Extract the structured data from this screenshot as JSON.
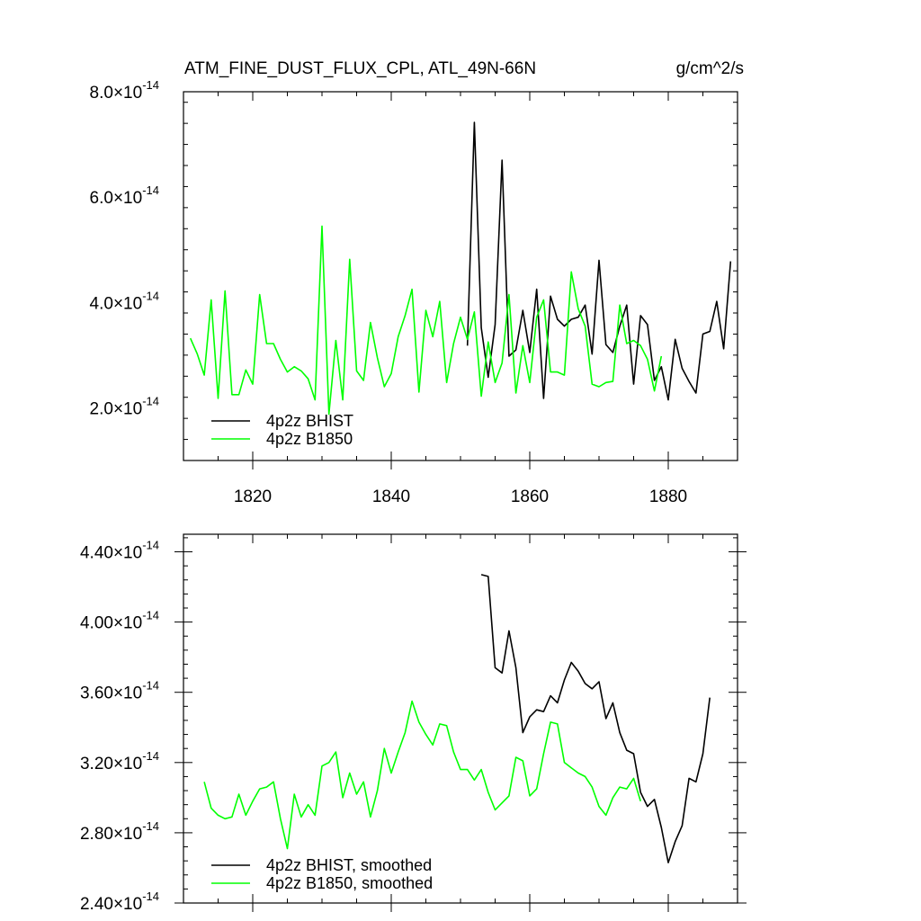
{
  "chart_data": [
    {
      "type": "line",
      "title": "ATM_FINE_DUST_FLUX_CPL, ATL_49N-66N",
      "units": "g/cm^2/s",
      "xlim": [
        1810,
        1890
      ],
      "ylim": [
        1e-14,
        8e-14
      ],
      "x_ticks": [
        1820,
        1840,
        1860,
        1880
      ],
      "x_tick_labels": [
        "1820",
        "1840",
        "1860",
        "1880"
      ],
      "y_ticks": [
        2e-14,
        4e-14,
        6e-14,
        8e-14
      ],
      "y_tick_labels": [
        {
          "mant": "2.0",
          "exp": "-14"
        },
        {
          "mant": "4.0",
          "exp": "-14"
        },
        {
          "mant": "6.0",
          "exp": "-14"
        },
        {
          "mant": "8.0",
          "exp": "-14"
        }
      ],
      "legend_position": "bottom-left",
      "series": [
        {
          "name": "4p2z BHIST",
          "color": "#000000",
          "x": [
            1851,
            1852,
            1853,
            1854,
            1855,
            1856,
            1857,
            1858,
            1859,
            1860,
            1861,
            1862,
            1863,
            1864,
            1865,
            1866,
            1867,
            1868,
            1869,
            1870,
            1871,
            1872,
            1873,
            1874,
            1875,
            1876,
            1877,
            1878,
            1879,
            1880,
            1881,
            1882,
            1883,
            1884,
            1885,
            1886,
            1887,
            1888,
            1889
          ],
          "y": [
            3.18e-14,
            7.42e-14,
            3.52e-14,
            2.58e-14,
            3.58e-14,
            6.7e-14,
            2.98e-14,
            3.1e-14,
            3.85e-14,
            3.05e-14,
            4.25e-14,
            2.18e-14,
            4.12e-14,
            3.68e-14,
            3.55e-14,
            3.68e-14,
            3.72e-14,
            3.95e-14,
            3.02e-14,
            4.8e-14,
            3.2e-14,
            3.05e-14,
            3.55e-14,
            3.95e-14,
            2.45e-14,
            3.75e-14,
            3.58e-14,
            2.52e-14,
            2.78e-14,
            2.15e-14,
            3.3e-14,
            2.75e-14,
            2.5e-14,
            2.28e-14,
            3.4e-14,
            3.45e-14,
            4.02e-14,
            3.12e-14,
            4.78e-14
          ]
        },
        {
          "name": "4p2z B1850",
          "color": "#00ff00",
          "x": [
            1811,
            1812,
            1813,
            1814,
            1815,
            1816,
            1817,
            1818,
            1819,
            1820,
            1821,
            1822,
            1823,
            1824,
            1825,
            1826,
            1827,
            1828,
            1829,
            1830,
            1831,
            1832,
            1833,
            1834,
            1835,
            1836,
            1837,
            1838,
            1839,
            1840,
            1841,
            1842,
            1843,
            1844,
            1845,
            1846,
            1847,
            1848,
            1849,
            1850,
            1851,
            1852,
            1853,
            1854,
            1855,
            1856,
            1857,
            1858,
            1859,
            1860,
            1861,
            1862,
            1863,
            1864,
            1865,
            1866,
            1867,
            1868,
            1869,
            1870,
            1871,
            1872,
            1873,
            1874,
            1875,
            1876,
            1877,
            1878,
            1879
          ],
          "y": [
            3.32e-14,
            3.02e-14,
            2.62e-14,
            4.05e-14,
            2.18e-14,
            4.22e-14,
            2.25e-14,
            2.25e-14,
            2.72e-14,
            2.45e-14,
            4.15e-14,
            3.22e-14,
            3.22e-14,
            2.92e-14,
            2.68e-14,
            2.78e-14,
            2.7e-14,
            2.55e-14,
            2.15e-14,
            5.45e-14,
            1.88e-14,
            3.28e-14,
            2.15e-14,
            4.82e-14,
            2.7e-14,
            2.52e-14,
            3.62e-14,
            2.95e-14,
            2.4e-14,
            2.65e-14,
            3.35e-14,
            3.75e-14,
            4.25e-14,
            2.3e-14,
            3.85e-14,
            3.35e-14,
            4.02e-14,
            2.48e-14,
            3.22e-14,
            3.72e-14,
            3.3e-14,
            3.82e-14,
            2.22e-14,
            3.25e-14,
            2.48e-14,
            2.85e-14,
            4.15e-14,
            2.28e-14,
            3.18e-14,
            2.48e-14,
            3.72e-14,
            4.05e-14,
            2.68e-14,
            2.68e-14,
            2.62e-14,
            4.58e-14,
            3.88e-14,
            3.55e-14,
            2.45e-14,
            2.4e-14,
            2.48e-14,
            2.5e-14,
            3.95e-14,
            3.22e-14,
            3.28e-14,
            3.18e-14,
            2.92e-14,
            2.32e-14,
            2.98e-14
          ]
        }
      ]
    },
    {
      "type": "line",
      "xlim": [
        1810,
        1890
      ],
      "ylim": [
        2.4e-14,
        4.5e-14
      ],
      "x_ticks": [
        1820,
        1840,
        1860,
        1880
      ],
      "y_ticks": [
        2.4e-14,
        2.8e-14,
        3.2e-14,
        3.6e-14,
        4e-14,
        4.4e-14
      ],
      "y_tick_labels": [
        {
          "mant": "2.40",
          "exp": "-14"
        },
        {
          "mant": "2.80",
          "exp": "-14"
        },
        {
          "mant": "3.20",
          "exp": "-14"
        },
        {
          "mant": "3.60",
          "exp": "-14"
        },
        {
          "mant": "4.00",
          "exp": "-14"
        },
        {
          "mant": "4.40",
          "exp": "-14"
        }
      ],
      "legend_position": "bottom-left",
      "series": [
        {
          "name": "4p2z BHIST, smoothed",
          "color": "#000000",
          "x": [
            1853,
            1854,
            1855,
            1856,
            1857,
            1858,
            1859,
            1860,
            1861,
            1862,
            1863,
            1864,
            1865,
            1866,
            1867,
            1868,
            1869,
            1870,
            1871,
            1872,
            1873,
            1874,
            1875,
            1876,
            1877,
            1878,
            1879,
            1880,
            1881,
            1882,
            1883,
            1884,
            1885,
            1886
          ],
          "y": [
            4.27e-14,
            4.26e-14,
            3.74e-14,
            3.71e-14,
            3.95e-14,
            3.74e-14,
            3.37e-14,
            3.46e-14,
            3.5e-14,
            3.49e-14,
            3.58e-14,
            3.54e-14,
            3.67e-14,
            3.77e-14,
            3.72e-14,
            3.65e-14,
            3.62e-14,
            3.66e-14,
            3.45e-14,
            3.54e-14,
            3.37e-14,
            3.27e-14,
            3.25e-14,
            3.03e-14,
            2.95e-14,
            2.99e-14,
            2.83e-14,
            2.63e-14,
            2.75e-14,
            2.84e-14,
            3.11e-14,
            3.09e-14,
            3.25e-14,
            3.57e-14
          ]
        },
        {
          "name": "4p2z B1850, smoothed",
          "color": "#00ff00",
          "x": [
            1813,
            1814,
            1815,
            1816,
            1817,
            1818,
            1819,
            1820,
            1821,
            1822,
            1823,
            1824,
            1825,
            1826,
            1827,
            1828,
            1829,
            1830,
            1831,
            1832,
            1833,
            1834,
            1835,
            1836,
            1837,
            1838,
            1839,
            1840,
            1841,
            1842,
            1843,
            1844,
            1845,
            1846,
            1847,
            1848,
            1849,
            1850,
            1851,
            1852,
            1853,
            1854,
            1855,
            1856,
            1857,
            1858,
            1859,
            1860,
            1861,
            1862,
            1863,
            1864,
            1865,
            1866,
            1867,
            1868,
            1869,
            1870,
            1871,
            1872,
            1873,
            1874,
            1875,
            1876
          ],
          "y": [
            3.09e-14,
            2.94e-14,
            2.9e-14,
            2.88e-14,
            2.89e-14,
            3.02e-14,
            2.9e-14,
            2.98e-14,
            3.05e-14,
            3.06e-14,
            3.09e-14,
            2.88e-14,
            2.71e-14,
            3.02e-14,
            2.89e-14,
            2.96e-14,
            2.9e-14,
            3.18e-14,
            3.2e-14,
            3.26e-14,
            3e-14,
            3.14e-14,
            3.02e-14,
            3.09e-14,
            2.89e-14,
            3.04e-14,
            3.28e-14,
            3.14e-14,
            3.26e-14,
            3.37e-14,
            3.55e-14,
            3.43e-14,
            3.36e-14,
            3.3e-14,
            3.42e-14,
            3.41e-14,
            3.26e-14,
            3.16e-14,
            3.16e-14,
            3.1e-14,
            3.16e-14,
            3.03e-14,
            2.93e-14,
            2.97e-14,
            3.01e-14,
            3.23e-14,
            3.21e-14,
            3.01e-14,
            3.05e-14,
            3.25e-14,
            3.43e-14,
            3.42e-14,
            3.2e-14,
            3.17e-14,
            3.14e-14,
            3.12e-14,
            3.06e-14,
            2.95e-14,
            2.9e-14,
            3e-14,
            3.06e-14,
            3.05e-14,
            3.11e-14,
            2.98e-14
          ]
        }
      ]
    }
  ]
}
